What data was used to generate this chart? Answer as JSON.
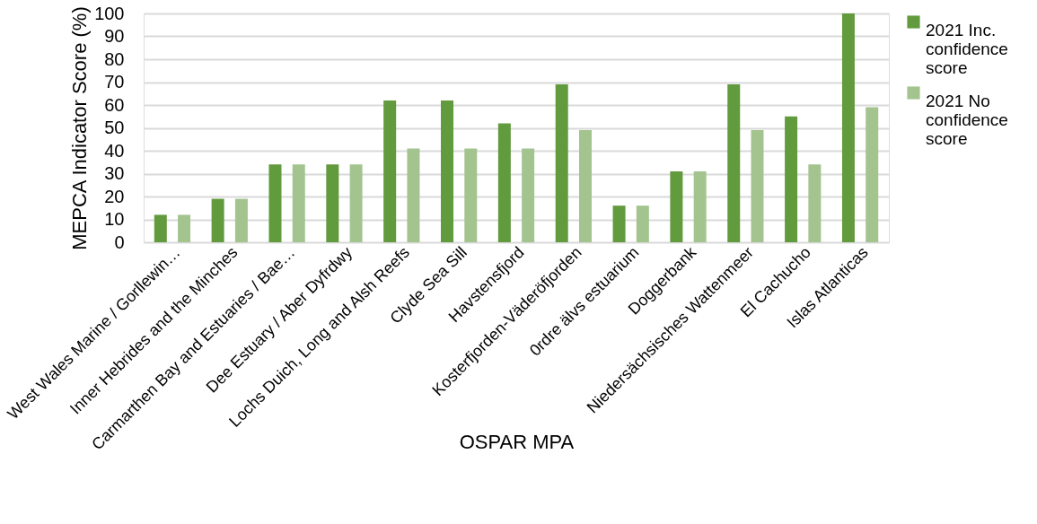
{
  "chart_data": {
    "type": "bar",
    "xlabel": "OSPAR MPA",
    "ylabel": "MEPCA Indicator Score (%)",
    "categories": [
      "West Wales Marine / Gorllewin…",
      "Inner Hebrides and the Minches",
      "Carmarthen Bay and Estuaries / Bae…",
      "Dee Estuary / Aber Dyfrdwy",
      "Lochs Duich, Long and Alsh Reefs",
      "Clyde Sea Sill",
      "Havstensfjord",
      "Kosterfjorden-Väderöfjorden",
      "0rdre älvs estuarium",
      "Doggerbank",
      "Niedersächsisches Wattenmeer",
      "El Cachucho",
      "Islas Atlanticas"
    ],
    "series": [
      {
        "name": "2021 Inc. confidence score",
        "color": "#629a3e",
        "values": [
          12,
          19,
          34,
          34,
          62,
          62,
          52,
          69,
          16,
          31,
          69,
          55,
          100
        ]
      },
      {
        "name": "2021 No confidence score",
        "color": "#a3c48f",
        "values": [
          12,
          19,
          34,
          34,
          41,
          41,
          41,
          49,
          16,
          31,
          49,
          34,
          59
        ]
      }
    ],
    "ylim": [
      0,
      100
    ],
    "yticks": [
      0,
      10,
      20,
      30,
      40,
      50,
      60,
      70,
      80,
      90,
      100
    ],
    "grid": "y",
    "legend": "right"
  }
}
